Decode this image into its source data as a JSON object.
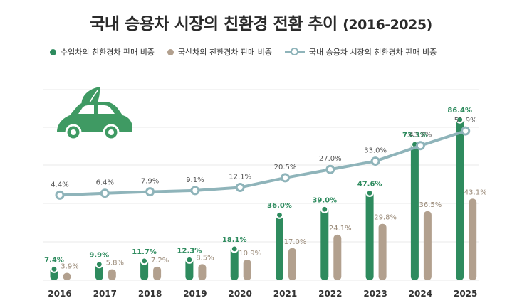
{
  "title": "국내 승용차 시장의 친환경 전환 추이",
  "title_years": "(2016-2025)",
  "legend": {
    "import": "수입차의 친환경차 판매 비중",
    "domestic": "국산차의 친환경차 판매 비중",
    "total": "국내 승용차 시장의 친환경차 판매 비중"
  },
  "colors": {
    "import": "#2e8b5e",
    "domestic": "#b2a08e",
    "total": "#8fb4ba",
    "grid": "#e8e8e8",
    "icon": "#3f9a63"
  },
  "icon": "eco-car-icon",
  "chart_data": {
    "type": "bar",
    "categories": [
      "2016",
      "2017",
      "2018",
      "2019",
      "2020",
      "2021",
      "2022",
      "2023",
      "2024",
      "2025"
    ],
    "series": [
      {
        "name": "수입차의 친환경차 판매 비중",
        "type": "bar",
        "values": [
          7.4,
          9.9,
          11.7,
          12.3,
          18.1,
          36.0,
          39.0,
          47.6,
          73.3,
          86.4
        ],
        "labels": [
          "7.4%",
          "9.9%",
          "11.7%",
          "12.3%",
          "18.1%",
          "36.0%",
          "39.0%",
          "47.6%",
          "73.3%",
          "86.4%"
        ]
      },
      {
        "name": "국산차의 친환경차 판매 비중",
        "type": "bar",
        "values": [
          3.9,
          5.8,
          7.2,
          8.5,
          10.9,
          17.0,
          24.1,
          29.8,
          36.5,
          43.1
        ],
        "labels": [
          "3.9%",
          "5.8%",
          "7.2%",
          "8.5%",
          "10.9%",
          "17.0%",
          "24.1%",
          "29.8%",
          "36.5%",
          "43.1%"
        ]
      },
      {
        "name": "국내 승용차 시장의 친환경차 판매 비중",
        "type": "line",
        "values": [
          4.4,
          6.4,
          7.9,
          9.1,
          12.1,
          20.5,
          27.0,
          33.0,
          43.2,
          51.9
        ],
        "labels": [
          "4.4%",
          "6.4%",
          "7.9%",
          "9.1%",
          "12.1%",
          "20.5%",
          "27.0%",
          "33.0%",
          "43.2%",
          "51.9%"
        ]
      }
    ],
    "grid": true,
    "legend_position": "top"
  }
}
